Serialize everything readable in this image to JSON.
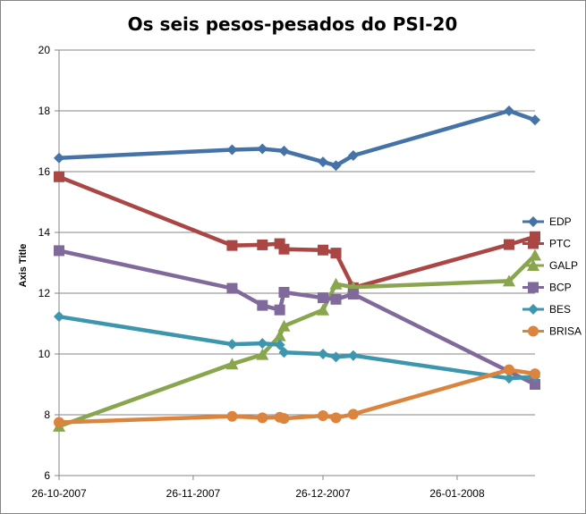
{
  "chart_data": {
    "type": "line",
    "title": "Os seis pesos-pesados do PSI-20",
    "xlabel": "",
    "ylabel": "Axis Title",
    "ylim": [
      6,
      20
    ],
    "yticks": [
      6,
      8,
      10,
      12,
      14,
      16,
      18,
      20
    ],
    "xlim": [
      "2007-10-26",
      "2008-02-13"
    ],
    "xticks": [
      "26-10-2007",
      "26-11-2007",
      "26-12-2007",
      "26-01-2008"
    ],
    "grid": "horizontal",
    "legend_position": "right",
    "series": [
      {
        "name": "EDP",
        "color": "#4572A7",
        "marker": "diamond",
        "points": [
          {
            "x": "2007-10-26",
            "y": 16.45
          },
          {
            "x": "2007-12-05",
            "y": 16.72
          },
          {
            "x": "2007-12-12",
            "y": 16.75
          },
          {
            "x": "2007-12-17",
            "y": 16.68
          },
          {
            "x": "2007-12-26",
            "y": 16.32
          },
          {
            "x": "2007-12-29",
            "y": 16.2
          },
          {
            "x": "2008-01-02",
            "y": 16.53
          },
          {
            "x": "2008-02-07",
            "y": 18.0
          },
          {
            "x": "2008-02-13",
            "y": 17.7
          }
        ]
      },
      {
        "name": "PTC",
        "color": "#AA4643",
        "marker": "square",
        "points": [
          {
            "x": "2007-10-26",
            "y": 15.83
          },
          {
            "x": "2007-12-05",
            "y": 13.57
          },
          {
            "x": "2007-12-12",
            "y": 13.59
          },
          {
            "x": "2007-12-16",
            "y": 13.63
          },
          {
            "x": "2007-12-17",
            "y": 13.45
          },
          {
            "x": "2007-12-26",
            "y": 13.42
          },
          {
            "x": "2007-12-29",
            "y": 13.32
          },
          {
            "x": "2008-01-02",
            "y": 12.18
          },
          {
            "x": "2008-02-07",
            "y": 13.6
          },
          {
            "x": "2008-02-13",
            "y": 13.86
          }
        ]
      },
      {
        "name": "GALP",
        "color": "#89A54E",
        "marker": "triangle",
        "points": [
          {
            "x": "2007-10-26",
            "y": 7.62
          },
          {
            "x": "2007-12-05",
            "y": 9.67
          },
          {
            "x": "2007-12-12",
            "y": 9.98
          },
          {
            "x": "2007-12-16",
            "y": 10.6
          },
          {
            "x": "2007-12-17",
            "y": 10.92
          },
          {
            "x": "2007-12-26",
            "y": 11.45
          },
          {
            "x": "2007-12-29",
            "y": 12.3
          },
          {
            "x": "2008-01-02",
            "y": 12.2
          },
          {
            "x": "2008-02-07",
            "y": 12.4
          },
          {
            "x": "2008-02-13",
            "y": 13.25
          }
        ]
      },
      {
        "name": "BCP",
        "color": "#80699B",
        "marker": "square",
        "points": [
          {
            "x": "2007-10-26",
            "y": 13.4
          },
          {
            "x": "2007-12-05",
            "y": 12.16
          },
          {
            "x": "2007-12-12",
            "y": 11.6
          },
          {
            "x": "2007-12-16",
            "y": 11.45
          },
          {
            "x": "2007-12-17",
            "y": 12.03
          },
          {
            "x": "2007-12-26",
            "y": 11.85
          },
          {
            "x": "2007-12-29",
            "y": 11.8
          },
          {
            "x": "2008-01-02",
            "y": 11.97
          },
          {
            "x": "2008-02-13",
            "y": 9.0
          }
        ]
      },
      {
        "name": "BES",
        "color": "#3D96AE",
        "marker": "diamond",
        "points": [
          {
            "x": "2007-10-26",
            "y": 11.23
          },
          {
            "x": "2007-12-05",
            "y": 10.32
          },
          {
            "x": "2007-12-12",
            "y": 10.35
          },
          {
            "x": "2007-12-16",
            "y": 10.3
          },
          {
            "x": "2007-12-17",
            "y": 10.05
          },
          {
            "x": "2007-12-26",
            "y": 10.0
          },
          {
            "x": "2007-12-29",
            "y": 9.9
          },
          {
            "x": "2008-01-02",
            "y": 9.95
          },
          {
            "x": "2008-02-07",
            "y": 9.2
          },
          {
            "x": "2008-02-13",
            "y": 9.25
          }
        ]
      },
      {
        "name": "BRISA",
        "color": "#DB843D",
        "marker": "circle",
        "points": [
          {
            "x": "2007-10-26",
            "y": 7.75
          },
          {
            "x": "2007-12-05",
            "y": 7.95
          },
          {
            "x": "2007-12-12",
            "y": 7.9
          },
          {
            "x": "2007-12-16",
            "y": 7.92
          },
          {
            "x": "2007-12-17",
            "y": 7.88
          },
          {
            "x": "2007-12-26",
            "y": 7.97
          },
          {
            "x": "2007-12-29",
            "y": 7.9
          },
          {
            "x": "2008-01-02",
            "y": 8.02
          },
          {
            "x": "2008-02-07",
            "y": 9.48
          },
          {
            "x": "2008-02-13",
            "y": 9.35
          }
        ]
      }
    ]
  }
}
